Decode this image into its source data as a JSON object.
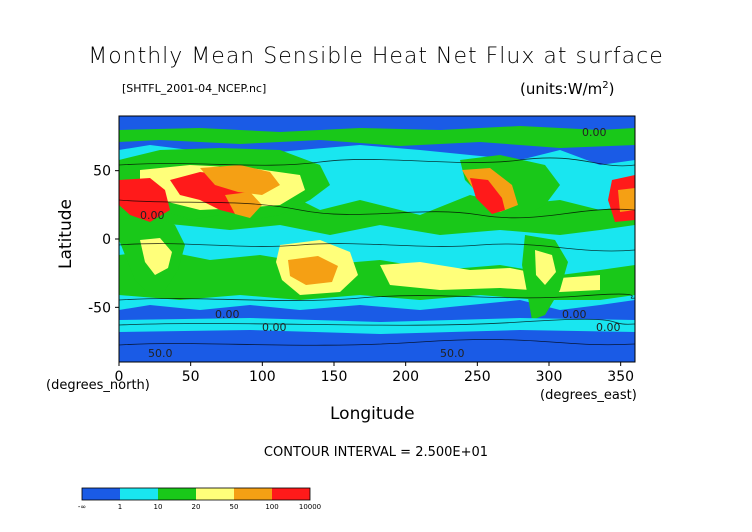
{
  "chart_data": {
    "type": "heatmap",
    "title": "Monthly Mean Sensible Heat Net Flux at surface",
    "source_file": "[SHTFL_2001-04_NCEP.nc]",
    "units": "(units:W/m",
    "units_power": "2",
    "units_close": ")",
    "xlabel": "Longitude",
    "ylabel": "Latitude",
    "x_unit_note": "(degrees_east)",
    "y_unit_note": "(degrees_north)",
    "xlim": [
      0,
      360
    ],
    "ylim": [
      -90,
      90
    ],
    "x_ticks": [
      0,
      50,
      100,
      150,
      200,
      250,
      300,
      350
    ],
    "y_ticks": [
      50,
      0,
      -50
    ],
    "contour_interval": "CONTOUR INTERVAL = 2.500E+01",
    "contour_labels": [
      "50.0",
      "50.0",
      "0.00",
      "0.00",
      "0.00",
      "0.00",
      "0.00",
      "0.00"
    ],
    "colorbar": {
      "colors": [
        "#1a5be6",
        "#19e6f0",
        "#19c819",
        "#ffff7a",
        "#f5a014",
        "#ff1a1a"
      ],
      "labels": [
        "-∞",
        "1",
        "10",
        "20",
        "50",
        "100",
        "10000"
      ]
    },
    "regions": [
      {
        "lon": [
          0,
          360
        ],
        "lat": [
          -90,
          90
        ],
        "level": 1
      },
      {
        "lon": [
          130,
          230
        ],
        "lat": [
          -40,
          40
        ],
        "level": 2
      },
      {
        "lon": [
          0,
          80
        ],
        "lat": [
          10,
          50
        ],
        "level": 5
      },
      {
        "lon": [
          55,
          115
        ],
        "lat": [
          20,
          45
        ],
        "level": 5
      },
      {
        "lon": [
          115,
          150
        ],
        "lat": [
          -35,
          -15
        ],
        "level": 4
      }
    ]
  }
}
